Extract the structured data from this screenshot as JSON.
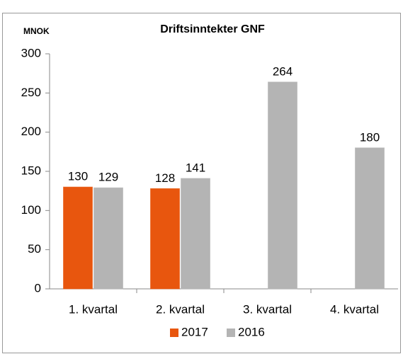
{
  "chart_data": {
    "type": "bar",
    "title": "Driftsinntekter GNF",
    "y_label": "MNOK",
    "categories": [
      "1. kvartal",
      "2. kvartal",
      "3. kvartal",
      "4. kvartal"
    ],
    "series": [
      {
        "name": "2017",
        "color": "#e8560e",
        "values": [
          130,
          128,
          null,
          null
        ]
      },
      {
        "name": "2016",
        "color": "#b4b4b4",
        "values": [
          129,
          141,
          264,
          180
        ]
      }
    ],
    "ylim": [
      0,
      300
    ],
    "yticks": [
      0,
      50,
      100,
      150,
      200,
      250,
      300
    ],
    "legend": "bottom"
  }
}
